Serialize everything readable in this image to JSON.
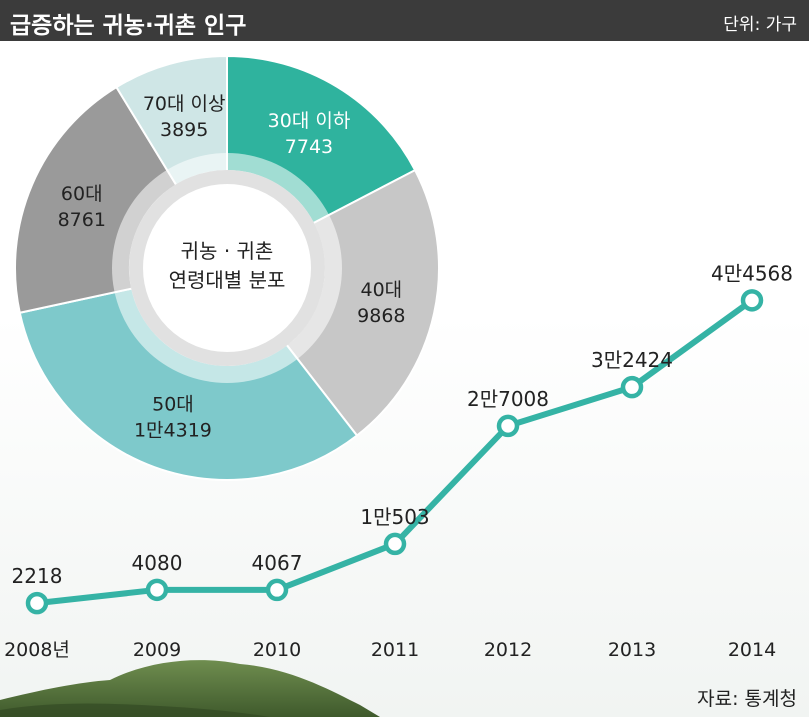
{
  "title": "급증하는 귀농·귀촌 인구",
  "unit": "단위: 가구",
  "source": "자료: 통계청",
  "colors": {
    "line": "#35b3a5",
    "accent": "#2fb39e",
    "seg_40": "#c7c7c7",
    "seg_50": "#7ec9cb",
    "seg_60": "#9a9a9a",
    "seg_70": "#cfe6e6",
    "header": "#3b3b3b"
  },
  "chart_data": [
    {
      "type": "line",
      "categories": [
        "2008년",
        "2009",
        "2010",
        "2011",
        "2012",
        "2013",
        "2014"
      ],
      "series": [
        {
          "values": [
            2218,
            4080,
            4067,
            10503,
            27008,
            32424,
            44568
          ],
          "labels": [
            "2218",
            "4080",
            "4067",
            "1만503",
            "2만7008",
            "3만2424",
            "4만4568"
          ]
        }
      ],
      "ylim": [
        0,
        50000
      ]
    },
    {
      "type": "pie",
      "title": "귀농 · 귀촌 연령대별 분포",
      "title_lines": [
        "귀농 · 귀촌",
        "연령대별 분포"
      ],
      "slices": [
        {
          "label": "30대 이하",
          "value": 7743,
          "value_label": "7743"
        },
        {
          "label": "40대",
          "value": 9868,
          "value_label": "9868"
        },
        {
          "label": "50대",
          "value": 14319,
          "value_label": "1만4319"
        },
        {
          "label": "60대",
          "value": 8761,
          "value_label": "8761"
        },
        {
          "label": "70대 이상",
          "value": 3895,
          "value_label": "3895"
        }
      ]
    }
  ]
}
